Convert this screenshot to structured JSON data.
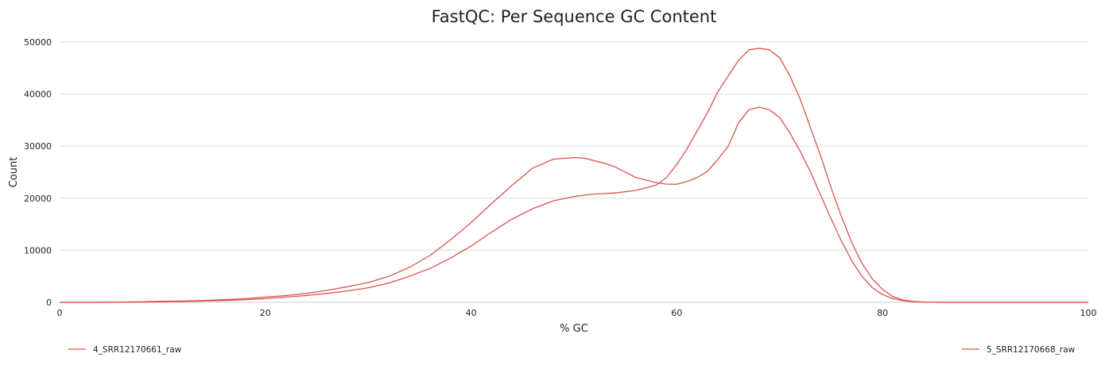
{
  "chart_data": {
    "type": "line",
    "title": "FastQC: Per Sequence GC Content",
    "xlabel": "% GC",
    "ylabel": "Count",
    "xlim": [
      0,
      100
    ],
    "ylim": [
      0,
      50000
    ],
    "xticks": [
      "0",
      "20",
      "40",
      "60",
      "80",
      "100"
    ],
    "yticks": [
      "0",
      "10000",
      "20000",
      "30000",
      "40000",
      "50000"
    ],
    "grid": true,
    "legend": "bottom",
    "colors": {
      "series": "#d9534f",
      "grid": "#dcdcdc"
    },
    "series": [
      {
        "name": "4_SRR12170661_raw",
        "color": "#d9534f",
        "x": [
          0,
          4,
          8,
          10,
          12,
          14,
          16,
          18,
          20,
          22,
          24,
          26,
          28,
          30,
          32,
          34,
          36,
          38,
          40,
          42,
          44,
          46,
          48,
          50,
          51,
          52,
          53,
          54,
          56,
          58,
          59,
          60,
          61,
          62,
          63,
          64,
          65,
          66,
          67,
          68,
          69,
          70,
          71,
          72,
          73,
          74,
          75,
          76,
          77,
          78,
          79,
          80,
          81,
          82,
          83,
          84,
          85,
          86,
          88,
          90,
          100
        ],
        "y": [
          0,
          0,
          100,
          200,
          250,
          350,
          500,
          700,
          1000,
          1300,
          1700,
          2300,
          3000,
          3800,
          5000,
          6700,
          9000,
          12000,
          15300,
          19000,
          22500,
          25800,
          27500,
          27800,
          27700,
          27200,
          26700,
          26000,
          24000,
          23000,
          22700,
          22700,
          23200,
          24000,
          25200,
          27500,
          30000,
          34500,
          37000,
          37500,
          37000,
          35500,
          32500,
          29000,
          25000,
          20500,
          16000,
          11800,
          8000,
          5000,
          2800,
          1500,
          700,
          300,
          100,
          30,
          10,
          0,
          0,
          0,
          0
        ]
      },
      {
        "name": "5_SRR12170668_raw",
        "color": "#d9534f",
        "x": [
          0,
          4,
          8,
          10,
          12,
          14,
          16,
          18,
          20,
          22,
          24,
          26,
          28,
          30,
          32,
          34,
          36,
          38,
          40,
          42,
          44,
          46,
          48,
          50,
          51,
          52,
          54,
          56,
          58,
          59,
          60,
          61,
          62,
          63,
          64,
          65,
          66,
          67,
          68,
          69,
          70,
          71,
          72,
          73,
          74,
          75,
          76,
          77,
          78,
          79,
          80,
          81,
          82,
          83,
          84,
          85,
          86,
          88,
          90,
          100
        ],
        "y": [
          0,
          0,
          50,
          100,
          150,
          250,
          350,
          500,
          700,
          1000,
          1300,
          1700,
          2200,
          2800,
          3700,
          5000,
          6500,
          8500,
          10800,
          13500,
          16000,
          18000,
          19500,
          20300,
          20600,
          20800,
          21000,
          21500,
          22500,
          24000,
          26500,
          29500,
          33000,
          36500,
          40500,
          43500,
          46500,
          48500,
          48800,
          48500,
          47000,
          43500,
          39000,
          33500,
          28000,
          22000,
          16500,
          11500,
          7500,
          4500,
          2500,
          1100,
          450,
          150,
          50,
          10,
          0,
          0,
          0,
          0
        ]
      }
    ]
  }
}
